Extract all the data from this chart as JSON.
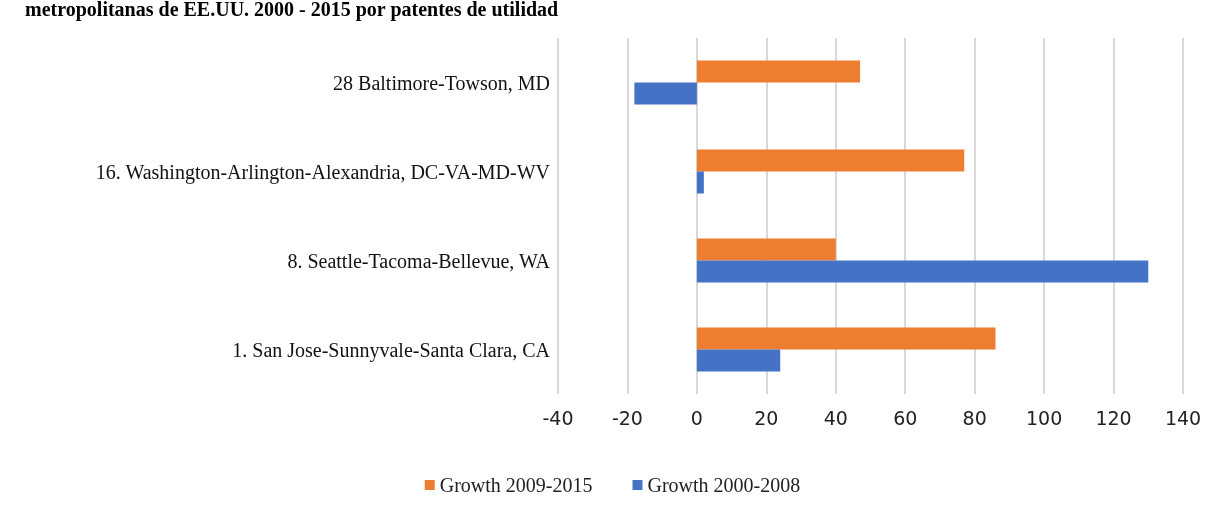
{
  "chart_data": {
    "type": "bar",
    "orientation": "horizontal",
    "title": "metropolitanas de EE.UU. 2000 - 2015 por patentes de utilidad",
    "categories": [
      "28 Baltimore-Towson, MD",
      "16. Washington-Arlington-Alexandria, DC-VA-MD-WV",
      "8. Seattle-Tacoma-Bellevue, WA",
      "1. San Jose-Sunnyvale-Santa Clara, CA"
    ],
    "series": [
      {
        "name": "Growth 2009-2015",
        "color": "#ed7d31",
        "values": [
          47,
          77,
          40,
          86
        ]
      },
      {
        "name": "Growth 2000-2008",
        "color": "#4472c4",
        "values": [
          -18,
          2,
          130,
          24
        ]
      }
    ],
    "xlim": [
      -40,
      140
    ],
    "xticks": [
      -40,
      -20,
      0,
      20,
      40,
      60,
      80,
      100,
      120,
      140
    ],
    "grid": "x",
    "legend": "bottom"
  }
}
